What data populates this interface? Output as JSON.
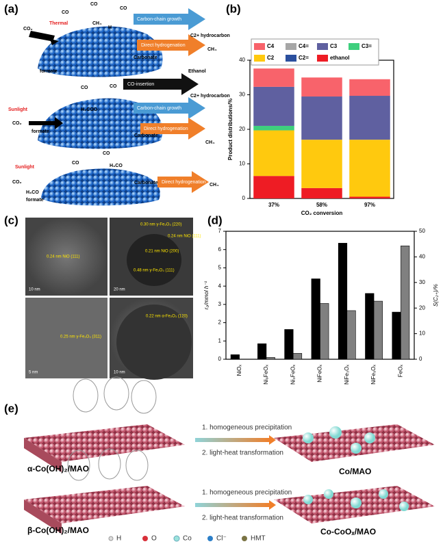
{
  "panel_labels": [
    "(a)",
    "(b)",
    "(c)",
    "(d)",
    "(e)"
  ],
  "scheme_a": {
    "labels": [
      "CO",
      "CO",
      "CO",
      "CO₂",
      "Thermal",
      "CH₄",
      "H",
      "Carbonate",
      "formate",
      "Carbon-chain growth",
      "C2+ hydrocarbon",
      "Direct hydrogenation",
      "CH₄",
      "CO-insertion",
      "Ethanol",
      "CO",
      "CO",
      "Sunlight",
      "CO₂",
      "H₃COO",
      "formate",
      "Carbonate",
      "Carbon-chain growth",
      "C2+ hydrocarbon",
      "Direct hydrogenation",
      "CH₄",
      "CO",
      "CO",
      "Sunlight",
      "CO₂",
      "H₃CO",
      "formate",
      "H₃CO",
      "Carbonate",
      "Direct hydrogenation",
      "CH₄"
    ]
  },
  "tem_c": {
    "labels": [
      "0.24 nm NiO (111)",
      "10 nm",
      "0.30 nm γ-Fe₂O₃ (220)",
      "0.24 nm NiO (111)",
      "0.21 nm NiO (200)",
      "0.48 nm γ-Fe₂O₃ (111)",
      "20 nm",
      "0.25 nm γ-Fe₂O₃ (311)",
      "5 nm",
      "0.22 nm α-Fe₂O₃ (120)",
      "10 nm"
    ]
  },
  "scheme_e": {
    "step1": "1. homogeneous precipitation",
    "step2": "2. light-heat transformation",
    "alpha": "α-Co(OH)₂/MAO",
    "alpha_product": "Co/MAO",
    "beta": "β-Co(OH)₂/MAO",
    "beta_product": "Co-CoOₓ/MAO",
    "legend": [
      "H",
      "O",
      "Co",
      "Cl⁻",
      "HMT"
    ]
  },
  "chart_data": [
    {
      "type": "bar",
      "stacked": true,
      "xlabel": "CO₂ conversion",
      "ylabel": "Product distributions/%",
      "categories": [
        "37%",
        "58%",
        "97%"
      ],
      "ylim": [
        0,
        40
      ],
      "yticks": [
        0,
        10,
        20,
        30,
        40
      ],
      "series": [
        {
          "name": "C4",
          "color": "#f8636b",
          "values": [
            5.3,
            5.5,
            4.8
          ]
        },
        {
          "name": "C4=",
          "color": "#a6a6a6",
          "values": [
            0,
            0,
            0
          ]
        },
        {
          "name": "C3",
          "color": "#5f60a0",
          "values": [
            11.3,
            12.5,
            12.7
          ]
        },
        {
          "name": "C3=",
          "color": "#3ecf7d",
          "values": [
            1.3,
            0,
            0
          ]
        },
        {
          "name": "C2",
          "color": "#ffc90e",
          "values": [
            13.2,
            14,
            16.5
          ]
        },
        {
          "name": "C2=",
          "color": "#2b4f9e",
          "values": [
            0,
            0,
            0
          ]
        },
        {
          "name": "ethanol",
          "color": "#ee1c24",
          "values": [
            6.5,
            3,
            0.5
          ]
        }
      ]
    },
    {
      "type": "bar",
      "ylabel": "r₀/mmol h⁻¹",
      "y2label": "S(C₂₊)/%",
      "categories": [
        "NiOₓ",
        "Ni₉FeOₓ",
        "Ni₃FeOₓ",
        "NiFeOₓ",
        "NiFe₃Oₓ",
        "NiFe₉Oₓ",
        "FeOₓ"
      ],
      "ylim": [
        0,
        7
      ],
      "yticks": [
        0,
        1,
        2,
        3,
        4,
        5,
        6,
        7
      ],
      "y2lim": [
        0,
        50
      ],
      "y2ticks": [
        0,
        10,
        20,
        30,
        40,
        50
      ],
      "series": [
        {
          "color": "#000000",
          "values": [
            0.25,
            0.85,
            1.63,
            4.4,
            6.35,
            3.6,
            2.58
          ]
        },
        {
          "color": "#808080",
          "axis": "y2",
          "values": [
            0,
            0.7,
            2.3,
            21.8,
            19,
            22.7,
            44.3
          ]
        }
      ]
    }
  ]
}
